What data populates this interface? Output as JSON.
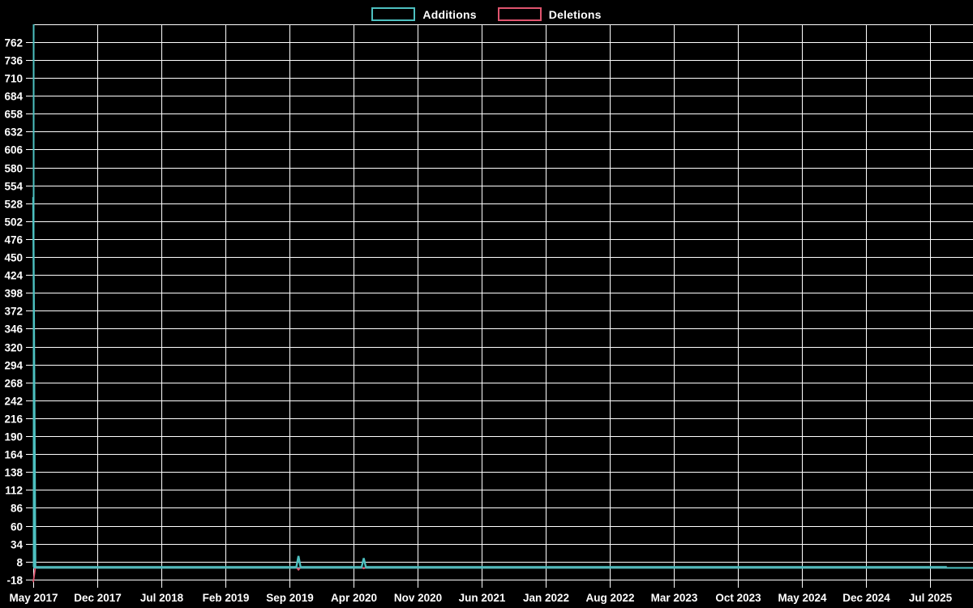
{
  "legend": {
    "items": [
      {
        "label": "Additions",
        "color": "#4dc0c0"
      },
      {
        "label": "Deletions",
        "color": "#e0546e"
      }
    ]
  },
  "chart_data": {
    "type": "line",
    "title": "",
    "legend_position": "top-center",
    "background_color": "#000000",
    "grid_color": "#ffffff",
    "axis_color": "#4dc0c0",
    "text_color": "#ffffff",
    "x_axis": {
      "unit": "week",
      "weeks_total": 434,
      "start_label": "May 2017",
      "end_label": "Jul 2025",
      "tick_labels": [
        "May 2017",
        "Dec 2017",
        "Jul 2018",
        "Feb 2019",
        "Sep 2019",
        "Apr 2020",
        "Nov 2020",
        "Jun 2021",
        "Jan 2022",
        "Aug 2022",
        "Mar 2023",
        "Oct 2023",
        "May 2024",
        "Dec 2024",
        "Jul 2025"
      ],
      "tick_month_indices": [
        0,
        7,
        14,
        21,
        28,
        35,
        42,
        49,
        56,
        63,
        70,
        77,
        84,
        91,
        98
      ]
    },
    "y_axis": {
      "tick_values": [
        762,
        736,
        710,
        684,
        658,
        632,
        606,
        580,
        554,
        528,
        502,
        476,
        450,
        424,
        398,
        372,
        346,
        320,
        294,
        268,
        242,
        216,
        190,
        164,
        138,
        112,
        86,
        60,
        34,
        8,
        -18
      ],
      "tick_step": 26,
      "ylim": [
        -18,
        762
      ],
      "grid": true
    },
    "series": [
      {
        "name": "Additions",
        "color": "#4dc0c0",
        "baseline": 0,
        "points": [
          {
            "week": 0,
            "date": "May 2017",
            "value": 537
          },
          {
            "week": 126,
            "date": "Oct 2019",
            "value": 16
          },
          {
            "week": 157,
            "date": "May 2020",
            "value": 13
          }
        ]
      },
      {
        "name": "Deletions",
        "color": "#e0546e",
        "baseline": -0.5,
        "points": [
          {
            "week": 0,
            "date": "May 2017",
            "value": -22
          },
          {
            "week": 126,
            "date": "Oct 2019",
            "value": -4
          },
          {
            "week": 157,
            "date": "May 2020",
            "value": -2
          }
        ]
      }
    ]
  }
}
